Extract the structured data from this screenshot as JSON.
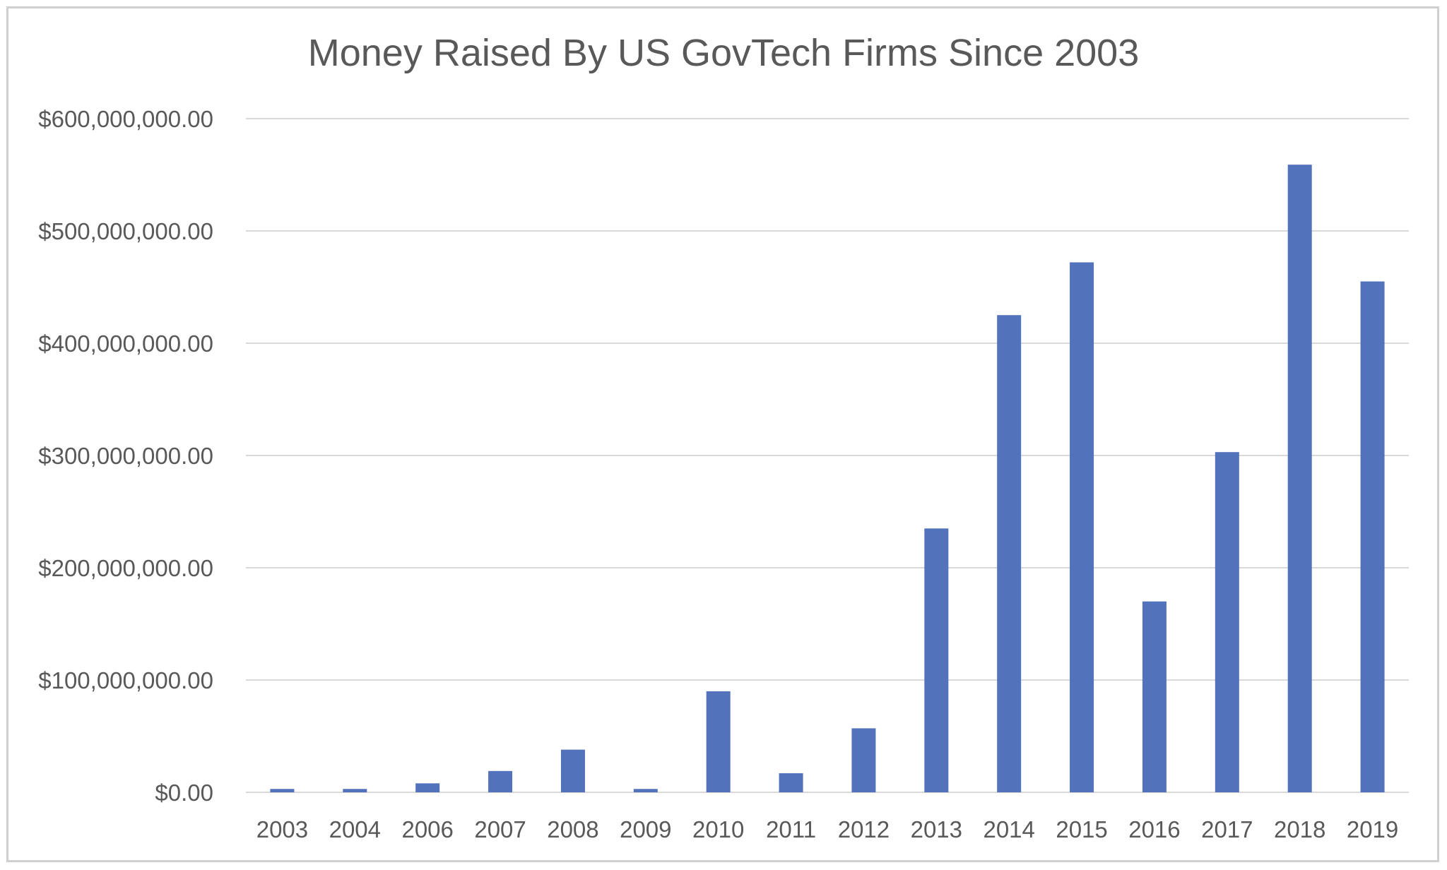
{
  "chart_data": {
    "type": "bar",
    "title": "Money Raised By US GovTech Firms Since 2003",
    "xlabel": "",
    "ylabel": "",
    "categories": [
      "2003",
      "2004",
      "2006",
      "2007",
      "2008",
      "2009",
      "2010",
      "2011",
      "2012",
      "2013",
      "2014",
      "2015",
      "2016",
      "2017",
      "2018",
      "2019"
    ],
    "values": [
      3000000,
      3000000,
      8000000,
      19000000,
      38000000,
      3000000,
      90000000,
      17000000,
      57000000,
      235000000,
      425000000,
      472000000,
      170000000,
      303000000,
      559000000,
      455000000
    ],
    "ylim": [
      0,
      600000000
    ],
    "yticks": [
      0,
      100000000,
      200000000,
      300000000,
      400000000,
      500000000,
      600000000
    ],
    "ytick_labels": [
      "$0.00",
      "$100,000,000.00",
      "$200,000,000.00",
      "$300,000,000.00",
      "$400,000,000.00",
      "$500,000,000.00",
      "$600,000,000.00"
    ],
    "grid": true,
    "legend": "none",
    "colors": {
      "bar": "#5272BC",
      "grid": "#D9D9D9",
      "text": "#595959"
    }
  }
}
